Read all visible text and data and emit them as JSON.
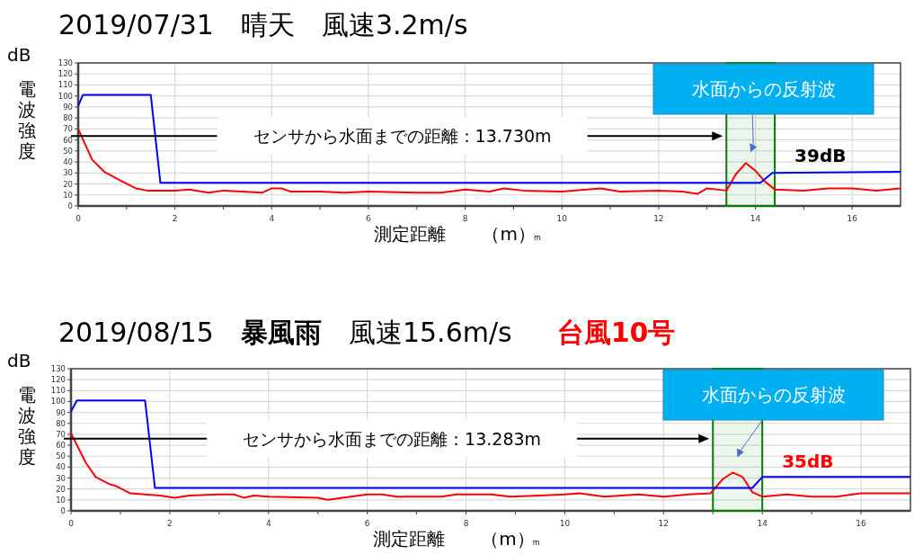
{
  "chart_data": [
    {
      "type": "line",
      "title": "2019/07/31　晴天　風速3.2m/s",
      "xlabel": "測定距離　　（m）",
      "ylabel": "電波強度",
      "xlim": [
        0,
        17
      ],
      "ylim": [
        0,
        130
      ],
      "xticks": [
        0,
        {
          "value": 1,
          "label": null
        },
        2,
        {
          "value": 3,
          "label": null
        },
        4,
        {
          "value": 5,
          "label": null
        },
        6,
        {
          "value": 7,
          "label": null
        },
        8,
        {
          "value": 9,
          "label": null
        },
        10,
        {
          "value": 11,
          "label": null
        },
        12,
        {
          "value": 13,
          "label": null
        },
        14,
        {
          "value": 15,
          "label": null
        },
        16
      ],
      "yticks": [
        0,
        10,
        20,
        30,
        40,
        50,
        60,
        70,
        80,
        90,
        100,
        110,
        120,
        130
      ],
      "grid": true,
      "marker": "none",
      "line_style": "solid",
      "series": [
        {
          "color": "#ff0000",
          "x": [
            0,
            0.29,
            0.54,
            0.88,
            1.19,
            1.43,
            2.0,
            2.3,
            2.7,
            3.0,
            3.4,
            3.8,
            4.0,
            4.2,
            4.4,
            5.0,
            5.5,
            6.0,
            7.0,
            7.5,
            8.0,
            8.5,
            8.8,
            9.2,
            10.0,
            10.8,
            11.2,
            12.0,
            12.5,
            12.8,
            13.0,
            13.4,
            13.6,
            13.8,
            14.0,
            14.2,
            14.4,
            15.0,
            15.5,
            16.0,
            16.5,
            17.0
          ],
          "values": [
            70,
            42,
            31,
            23,
            16,
            14,
            14,
            15,
            12,
            14,
            13,
            12,
            16,
            16,
            13,
            13,
            12,
            13,
            12,
            12,
            15,
            13,
            16,
            14,
            13,
            16,
            13,
            14,
            13,
            11,
            16,
            14,
            29,
            39,
            32,
            22,
            15,
            14,
            16,
            16,
            14,
            16
          ]
        },
        {
          "color": "#0000ff",
          "x": [
            0,
            0.1,
            1.5,
            1.7,
            14.1,
            14.35,
            17
          ],
          "values": [
            91,
            101,
            101,
            21,
            21,
            30,
            31
          ]
        }
      ],
      "ref_lines": [
        {
          "axis": "y",
          "value": 63.5,
          "label": "センサから水面までの距離：13.730m",
          "color": "#000000"
        }
      ],
      "bands": [
        {
          "axis": "x",
          "from": 13.4,
          "to": 14.4,
          "color": "#008000"
        }
      ],
      "annotations": [
        "dB",
        "m",
        "水面からの反射波",
        "39dB"
      ]
    },
    {
      "type": "line",
      "title": "2019/08/15　**暴風雨**　風速15.6m/s",
      "subtitle": "台風10号",
      "xlabel": "測定距離　　（m）",
      "ylabel": "電波強度",
      "xlim": [
        0,
        17
      ],
      "ylim": [
        0,
        130
      ],
      "xticks": [
        0,
        {
          "value": 1,
          "label": null
        },
        2,
        {
          "value": 3,
          "label": null
        },
        4,
        {
          "value": 5,
          "label": null
        },
        6,
        {
          "value": 7,
          "label": null
        },
        8,
        {
          "value": 9,
          "label": null
        },
        10,
        {
          "value": 11,
          "label": null
        },
        12,
        {
          "value": 13,
          "label": null
        },
        14,
        {
          "value": 15,
          "label": null
        },
        16
      ],
      "yticks": [
        0,
        10,
        20,
        30,
        40,
        50,
        60,
        70,
        80,
        90,
        100,
        110,
        120,
        130
      ],
      "grid": true,
      "marker": "none",
      "line_style": "solid",
      "series": [
        {
          "color": "#ff0000",
          "x": [
            0,
            0.3,
            0.5,
            0.8,
            0.9,
            1.2,
            1.5,
            1.8,
            2.1,
            2.4,
            3.0,
            3.3,
            3.5,
            3.7,
            4.0,
            5.0,
            5.2,
            5.5,
            6.0,
            6.3,
            6.6,
            7.5,
            7.8,
            8.0,
            8.5,
            8.9,
            9.5,
            10.0,
            10.3,
            10.8,
            11.5,
            12.0,
            12.5,
            12.95,
            13.2,
            13.4,
            13.6,
            13.8,
            14.0,
            14.5,
            15.0,
            15.5,
            16.0,
            17.0
          ],
          "values": [
            71,
            44,
            31,
            24,
            23,
            16,
            15,
            14,
            12,
            14,
            15,
            15,
            12,
            14,
            13,
            12,
            10,
            12,
            15,
            15,
            13,
            13,
            15,
            15,
            15,
            13,
            14,
            15,
            16,
            13,
            15,
            13,
            15,
            16,
            29,
            35,
            31,
            17,
            13,
            15,
            13,
            13,
            16,
            16
          ]
        },
        {
          "color": "#0000ff",
          "x": [
            0,
            0.12,
            1.5,
            1.7,
            13.8,
            14.0,
            17
          ],
          "values": [
            91,
            101,
            101,
            21,
            21,
            31,
            31
          ]
        }
      ],
      "ref_lines": [
        {
          "axis": "y",
          "value": 66,
          "label": "センサから水面までの距離：13.283m",
          "color": "#000000"
        }
      ],
      "bands": [
        {
          "axis": "x",
          "from": 13.0,
          "to": 14.0,
          "color": "#008000"
        }
      ],
      "annotations": [
        "dB",
        "m",
        "水面からの反射波",
        "35dB"
      ]
    }
  ]
}
